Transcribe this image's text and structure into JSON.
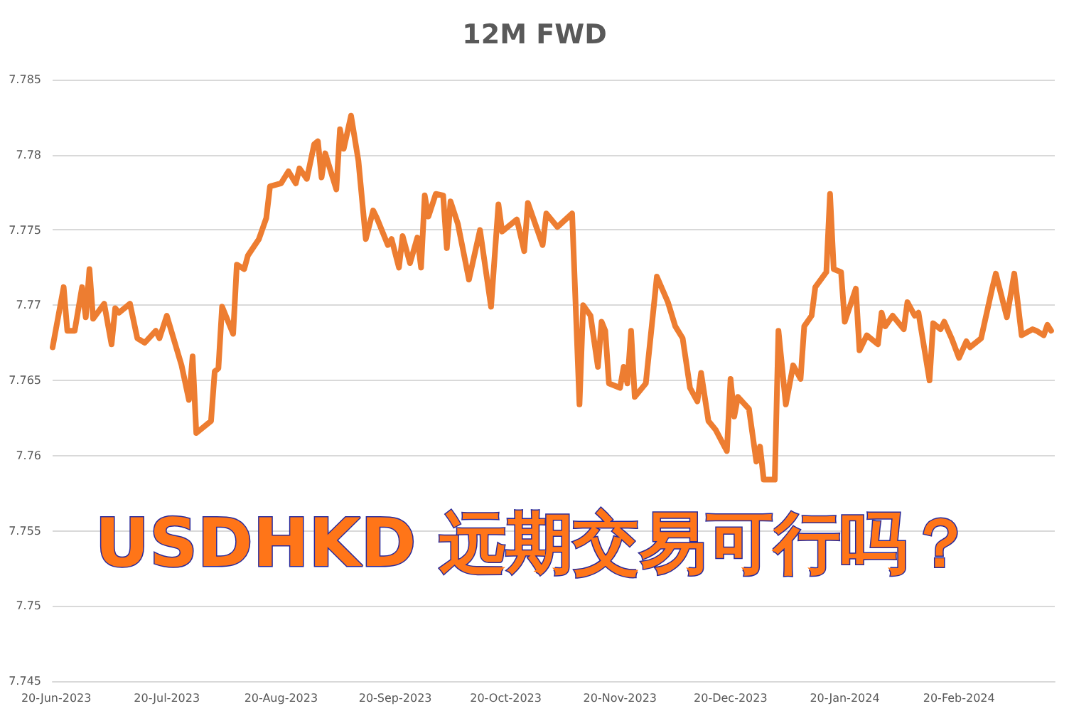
{
  "chart_data": {
    "type": "line",
    "title": "12M FWD",
    "annotations": [
      "USDHKD 远期交易可行吗？"
    ],
    "x": [
      "2023-06-19",
      "2023-06-22",
      "2023-06-23",
      "2023-06-25",
      "2023-06-27",
      "2023-06-28",
      "2023-06-29",
      "2023-06-30",
      "2023-07-03",
      "2023-07-05",
      "2023-07-06",
      "2023-07-07",
      "2023-07-10",
      "2023-07-12",
      "2023-07-14",
      "2023-07-17",
      "2023-07-18",
      "2023-07-20",
      "2023-07-24",
      "2023-07-26",
      "2023-07-27",
      "2023-07-28",
      "2023-08-01",
      "2023-08-02",
      "2023-08-03",
      "2023-08-04",
      "2023-08-07",
      "2023-08-08",
      "2023-08-10",
      "2023-08-11",
      "2023-08-14",
      "2023-08-16",
      "2023-08-17",
      "2023-08-20",
      "2023-08-22",
      "2023-08-24",
      "2023-08-25",
      "2023-08-27",
      "2023-08-29",
      "2023-08-30",
      "2023-08-31",
      "2023-09-01",
      "2023-09-04",
      "2023-09-05",
      "2023-09-06",
      "2023-09-08",
      "2023-09-10",
      "2023-09-12",
      "2023-09-14",
      "2023-09-15",
      "2023-09-18",
      "2023-09-19",
      "2023-09-21",
      "2023-09-22",
      "2023-09-24",
      "2023-09-26",
      "2023-09-27",
      "2023-09-28",
      "2023-09-29",
      "2023-10-01",
      "2023-10-03",
      "2023-10-04",
      "2023-10-05",
      "2023-10-07",
      "2023-10-10",
      "2023-10-13",
      "2023-10-16",
      "2023-10-18",
      "2023-10-19",
      "2023-10-23",
      "2023-10-25",
      "2023-10-26",
      "2023-10-30",
      "2023-10-31",
      "2023-11-03",
      "2023-11-07",
      "2023-11-09",
      "2023-11-10",
      "2023-11-12",
      "2023-11-14",
      "2023-11-15",
      "2023-11-16",
      "2023-11-17",
      "2023-11-20",
      "2023-11-21",
      "2023-11-22",
      "2023-11-23",
      "2023-11-24",
      "2023-11-27",
      "2023-11-30",
      "2023-12-03",
      "2023-12-05",
      "2023-12-07",
      "2023-12-09",
      "2023-12-11",
      "2023-12-12",
      "2023-12-14",
      "2023-12-16",
      "2023-12-19",
      "2023-12-20",
      "2023-12-21",
      "2023-12-22",
      "2023-12-25",
      "2023-12-27",
      "2023-12-28",
      "2023-12-29",
      "2024-01-01",
      "2024-01-02",
      "2024-01-04",
      "2024-01-06",
      "2024-01-08",
      "2024-01-09",
      "2024-01-11",
      "2024-01-12",
      "2024-01-15",
      "2024-01-16",
      "2024-01-17",
      "2024-01-19",
      "2024-01-20",
      "2024-01-23",
      "2024-01-24",
      "2024-01-26",
      "2024-01-29",
      "2024-01-30",
      "2024-01-31",
      "2024-02-02",
      "2024-02-05",
      "2024-02-06",
      "2024-02-08",
      "2024-02-09",
      "2024-02-12",
      "2024-02-13",
      "2024-02-15",
      "2024-02-16",
      "2024-02-18",
      "2024-02-20",
      "2024-02-22",
      "2024-02-23",
      "2024-02-26",
      "2024-02-29",
      "2024-03-01",
      "2024-03-04",
      "2024-03-06",
      "2024-03-08",
      "2024-03-11",
      "2024-03-12",
      "2024-03-14",
      "2024-03-15",
      "2024-03-16"
    ],
    "series": [
      {
        "color": "#ed7d31",
        "values": [
          7.7672,
          7.7712,
          7.7683,
          7.7683,
          7.7712,
          7.7692,
          7.7724,
          7.7691,
          7.7701,
          7.7674,
          7.7698,
          7.7695,
          7.7701,
          7.7678,
          7.7675,
          7.7683,
          7.7678,
          7.7693,
          7.766,
          7.7637,
          7.7666,
          7.7615,
          7.7623,
          7.7656,
          7.7658,
          7.7699,
          7.7681,
          7.7727,
          7.7724,
          7.7733,
          7.7744,
          7.7758,
          7.7779,
          7.7781,
          7.7789,
          7.7781,
          7.7791,
          7.7784,
          7.7807,
          7.7809,
          7.7785,
          7.7801,
          7.7777,
          7.7817,
          7.7804,
          7.7826,
          7.7796,
          7.7744,
          7.7763,
          7.7758,
          7.774,
          7.7744,
          7.7725,
          7.7746,
          7.7728,
          7.7745,
          7.7725,
          7.7773,
          7.7759,
          7.7774,
          7.7773,
          7.7738,
          7.7769,
          7.7754,
          7.7717,
          7.775,
          7.7699,
          7.7767,
          7.7749,
          7.7757,
          7.7736,
          7.7768,
          7.774,
          7.7761,
          7.7752,
          7.7761,
          7.7634,
          7.77,
          7.7693,
          7.7659,
          7.7689,
          7.7683,
          7.7648,
          7.7645,
          7.7659,
          7.7648,
          7.7683,
          7.7639,
          7.7648,
          7.7719,
          7.7702,
          7.7686,
          7.7678,
          7.7645,
          7.7636,
          7.7655,
          7.7623,
          7.7617,
          7.7603,
          7.7651,
          7.7626,
          7.7639,
          7.7631,
          7.7596,
          7.7606,
          7.7584,
          7.7584,
          7.7683,
          7.7634,
          7.766,
          7.7651,
          7.7686,
          7.7693,
          7.7712,
          7.7722,
          7.7774,
          7.7724,
          7.7722,
          7.7689,
          7.7711,
          7.767,
          7.768,
          7.7674,
          7.7695,
          7.7686,
          7.7693,
          7.7684,
          7.7702,
          7.7693,
          7.7695,
          7.765,
          7.7688,
          7.7684,
          7.7689,
          7.7678,
          7.7665,
          7.7676,
          7.7672,
          7.7678,
          7.7711,
          7.7721,
          7.7692,
          7.7721,
          7.768,
          7.7684,
          7.7683,
          7.768,
          7.7687,
          7.7683
        ]
      }
    ],
    "xlim": [
      "2023-06-19",
      "2024-03-17"
    ],
    "xticks": [
      {
        "value": "2023-06-20",
        "label": "20-Jun-2023"
      },
      {
        "value": "2023-07-20",
        "label": "20-Jul-2023"
      },
      {
        "value": "2023-08-20",
        "label": "20-Aug-2023"
      },
      {
        "value": "2023-09-20",
        "label": "20-Sep-2023"
      },
      {
        "value": "2023-10-20",
        "label": "20-Oct-2023"
      },
      {
        "value": "2023-11-20",
        "label": "20-Nov-2023"
      },
      {
        "value": "2023-12-20",
        "label": "20-Dec-2023"
      },
      {
        "value": "2024-01-20",
        "label": "20-Jan-2024"
      },
      {
        "value": "2024-02-20",
        "label": "20-Feb-2024"
      }
    ],
    "ylim": [
      7.745,
      7.785
    ],
    "yticks": [
      7.745,
      7.75,
      7.755,
      7.76,
      7.765,
      7.77,
      7.775,
      7.78,
      7.785
    ],
    "grid": "y",
    "marker": "none",
    "line_style": "solid"
  }
}
